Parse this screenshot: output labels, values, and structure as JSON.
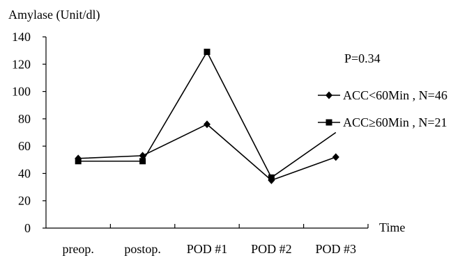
{
  "chart_data": {
    "type": "line",
    "ylabel": "Amylase (Unit/dl)",
    "xlabel": "Time",
    "categories": [
      "preop.",
      "postop.",
      "POD #1",
      "POD #2",
      "POD #3"
    ],
    "yticks": [
      0,
      20,
      40,
      60,
      80,
      100,
      120,
      140
    ],
    "ylim": [
      0,
      140
    ],
    "annotation": "P=0.34",
    "legend_position": "right",
    "series": [
      {
        "name": "ACC<60Min , N=46",
        "marker": "diamond",
        "values": [
          51,
          53,
          76,
          35,
          52
        ]
      },
      {
        "name": "ACC≥60Min , N=21",
        "marker": "square",
        "values": [
          49,
          49,
          129,
          37,
          70
        ]
      }
    ]
  }
}
